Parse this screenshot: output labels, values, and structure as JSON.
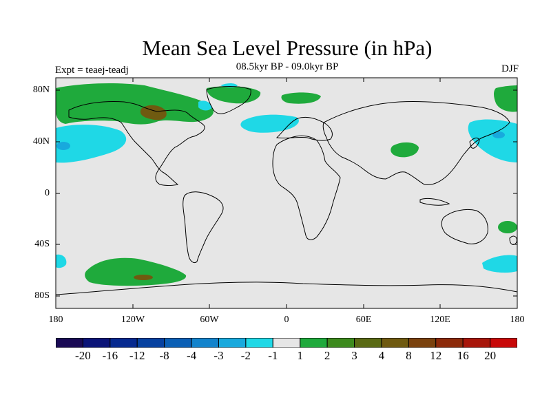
{
  "title": "Mean Sea Level Pressure (in hPa)",
  "subtitle": "08.5kyr BP - 09.0kyr BP",
  "experiment": "Expt = teaej-teadj",
  "season": "DJF",
  "lat_labels": [
    "80N",
    "40N",
    "0",
    "40S",
    "80S"
  ],
  "lon_labels": [
    "180",
    "120W",
    "60W",
    "0",
    "60E",
    "120E",
    "180"
  ],
  "colorbar": {
    "colors": [
      "#1a0a55",
      "#0b1478",
      "#06298f",
      "#0641a0",
      "#0a5fb5",
      "#1283cc",
      "#18a9dd",
      "#1fd8e6",
      "#e6e6e6",
      "#1faa3c",
      "#3d8a1e",
      "#5a6a14",
      "#6f5a10",
      "#7a420e",
      "#8c2a0a",
      "#a8160a",
      "#c80808"
    ],
    "labels": [
      "-20",
      "-16",
      "-12",
      "-8",
      "-4",
      "-3",
      "-2",
      "-1",
      "1",
      "2",
      "3",
      "4",
      "8",
      "12",
      "16",
      "20"
    ]
  },
  "chart_data": {
    "type": "heatmap",
    "title": "Mean Sea Level Pressure (in hPa)",
    "subtitle": "08.5kyr BP - 09.0kyr BP",
    "levels": [
      -20,
      -16,
      -12,
      -8,
      -4,
      -3,
      -2,
      -1,
      1,
      2,
      3,
      4,
      8,
      12,
      16,
      20
    ],
    "regions": [
      {
        "sign": "positive",
        "levels": "1 to 3",
        "area": "North America, Canada and Arctic"
      },
      {
        "sign": "negative",
        "levels": "-1 to -3",
        "area": "North Pacific near 40N"
      },
      {
        "sign": "negative",
        "levels": "-1 to -2",
        "area": "North Atlantic / Greenland"
      },
      {
        "sign": "positive",
        "levels": "1 to 2",
        "area": "Central Asia near 40N 90E"
      },
      {
        "sign": "negative",
        "levels": "-1 to -3",
        "area": "NW Pacific near 40N 150E"
      },
      {
        "sign": "positive",
        "levels": "1 to 4",
        "area": "South Pacific near 60S 120W"
      },
      {
        "sign": "negative",
        "levels": "-1 to -2",
        "area": "South Pacific near 55S 180"
      },
      {
        "sign": "positive",
        "levels": "1 to 2",
        "area": "Tasman Sea near 30S 165E"
      }
    ]
  }
}
